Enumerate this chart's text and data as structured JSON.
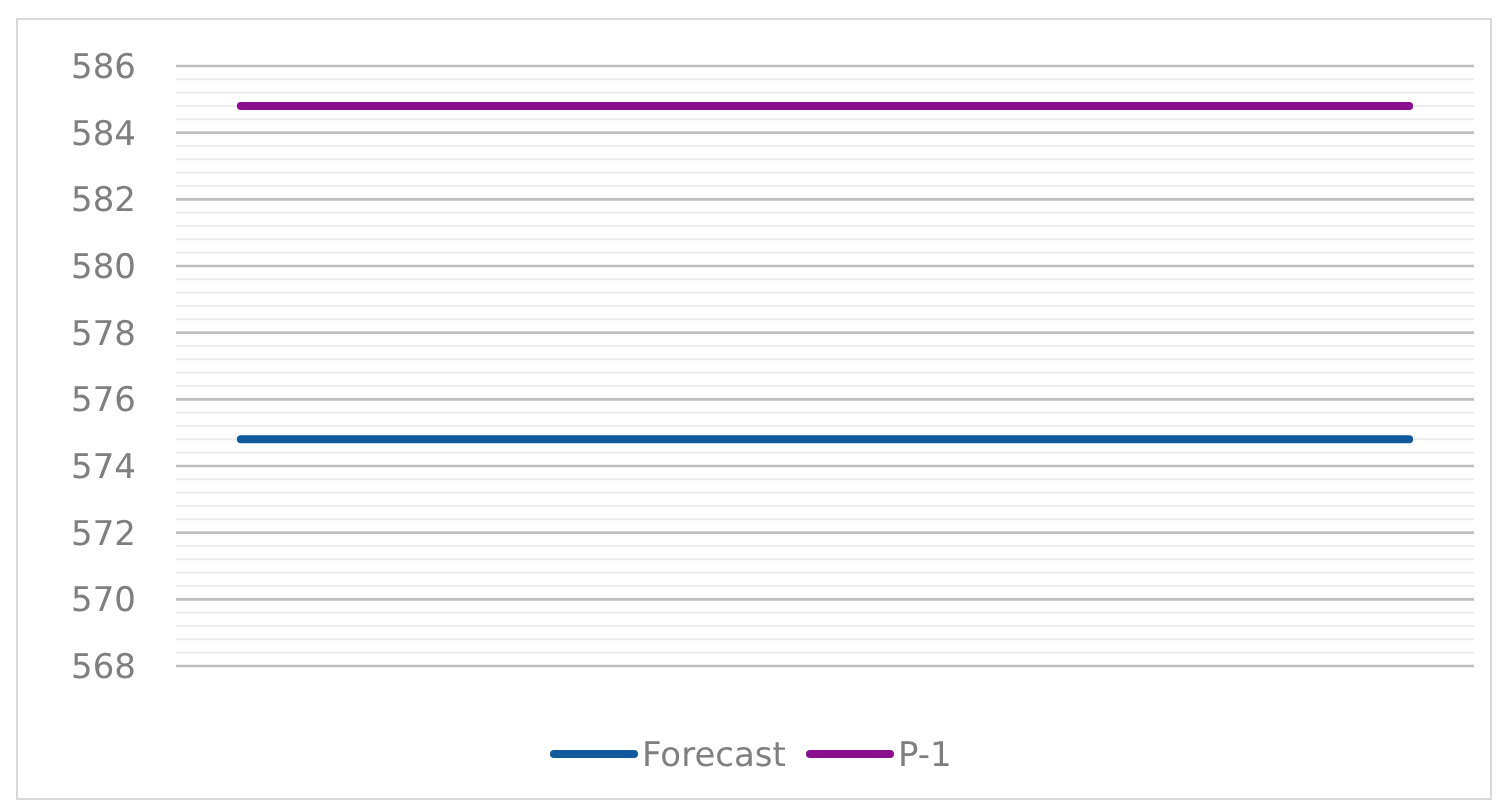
{
  "chart_data": {
    "type": "line",
    "categories": [
      null,
      null,
      null,
      null,
      null,
      null,
      null,
      null,
      null,
      null
    ],
    "series": [
      {
        "name": "Forecast",
        "color": "#0f5a9c",
        "values": [
          574.8,
          574.8,
          574.8,
          574.8,
          574.8,
          574.8,
          574.8,
          574.8,
          574.8,
          574.8
        ]
      },
      {
        "name": "P-1",
        "color": "#8a0f8f",
        "values": [
          584.8,
          584.8,
          584.8,
          584.8,
          584.8,
          584.8,
          584.8,
          584.8,
          584.8,
          584.8
        ]
      }
    ],
    "ylim": [
      568,
      586
    ],
    "yticks": [
      568,
      {
        "value": 568.4,
        "label": null
      },
      {
        "value": 568.8,
        "label": null
      },
      {
        "value": 569.2,
        "label": null
      },
      {
        "value": 569.6,
        "label": null
      },
      570,
      {
        "value": 570.4,
        "label": null
      },
      {
        "value": 570.8,
        "label": null
      },
      {
        "value": 571.2,
        "label": null
      },
      {
        "value": 571.6,
        "label": null
      },
      572,
      {
        "value": 572.4,
        "label": null
      },
      {
        "value": 572.8,
        "label": null
      },
      {
        "value": 573.2,
        "label": null
      },
      {
        "value": 573.6,
        "label": null
      },
      574,
      {
        "value": 574.4,
        "label": null
      },
      {
        "value": 574.8,
        "label": null
      },
      {
        "value": 575.2,
        "label": null
      },
      {
        "value": 575.6,
        "label": null
      },
      576,
      {
        "value": 576.4,
        "label": null
      },
      {
        "value": 576.8,
        "label": null
      },
      {
        "value": 577.2,
        "label": null
      },
      {
        "value": 577.6,
        "label": null
      },
      578,
      {
        "value": 578.4,
        "label": null
      },
      {
        "value": 578.8,
        "label": null
      },
      {
        "value": 579.2,
        "label": null
      },
      {
        "value": 579.6,
        "label": null
      },
      580,
      {
        "value": 580.4,
        "label": null
      },
      {
        "value": 580.8,
        "label": null
      },
      {
        "value": 581.2,
        "label": null
      },
      {
        "value": 581.6,
        "label": null
      },
      582,
      {
        "value": 582.4,
        "label": null
      },
      {
        "value": 582.8,
        "label": null
      },
      {
        "value": 583.2,
        "label": null
      },
      {
        "value": 583.6,
        "label": null
      },
      584,
      {
        "value": 584.4,
        "label": null
      },
      {
        "value": 584.8,
        "label": null
      },
      {
        "value": 585.2,
        "label": null
      },
      {
        "value": 585.6,
        "label": null
      },
      586
    ],
    "grid": "y",
    "legend": "bottom",
    "tick_labels": "y",
    "marker": "none",
    "line_style": "solid"
  }
}
